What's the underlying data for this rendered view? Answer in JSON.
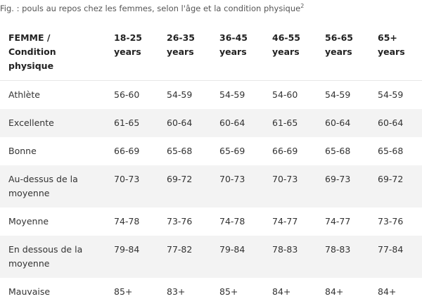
{
  "caption": {
    "text": "Fig. : pouls au repos chez les femmes, selon l'âge et la condition physique",
    "sup": "2"
  },
  "table": {
    "header": [
      "FEMME / Condition physique",
      "18-25 years",
      "26-35 years",
      "36-45 years",
      "46-55 years",
      "56-65 years",
      "65+ years"
    ],
    "rows": [
      [
        "Athlète",
        "56-60",
        "54-59",
        "54-59",
        "54-60",
        "54-59",
        "54-59"
      ],
      [
        "Excellente",
        "61-65",
        "60-64",
        "60-64",
        "61-65",
        "60-64",
        "60-64"
      ],
      [
        "Bonne",
        "66-69",
        "65-68",
        "65-69",
        "66-69",
        "65-68",
        "65-68"
      ],
      [
        "Au-dessus de la moyenne",
        "70-73",
        "69-72",
        "70-73",
        "70-73",
        "69-73",
        "69-72"
      ],
      [
        "Moyenne",
        "74-78",
        "73-76",
        "74-78",
        "74-77",
        "74-77",
        "73-76"
      ],
      [
        "En dessous de la moyenne",
        "79-84",
        "77-82",
        "79-84",
        "78-83",
        "78-83",
        "77-84"
      ],
      [
        "Mauvaise",
        "85+",
        "83+",
        "85+",
        "84+",
        "84+",
        "84+"
      ]
    ]
  }
}
